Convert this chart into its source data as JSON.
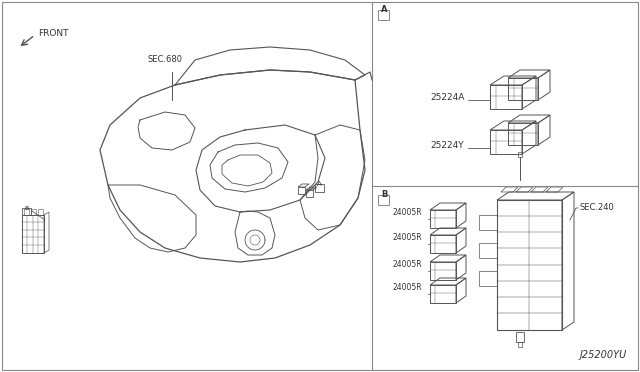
{
  "bg_color": "#ffffff",
  "border_color": "#888888",
  "line_color": "#555555",
  "text_color": "#333333",
  "part_codes": {
    "A_relay1": "25224A",
    "A_relay2": "25224Y",
    "B_relay1": "24005R",
    "B_relay2": "24005R",
    "B_relay3": "24005R",
    "B_relay4": "24005R",
    "sec680": "SEC.680",
    "sec240": "SEC.240",
    "callout_A": "A",
    "callout_B": "B",
    "footer": "J25200YU",
    "front_label": "FRONT"
  },
  "fig_width": 6.4,
  "fig_height": 3.72,
  "dpi": 100
}
